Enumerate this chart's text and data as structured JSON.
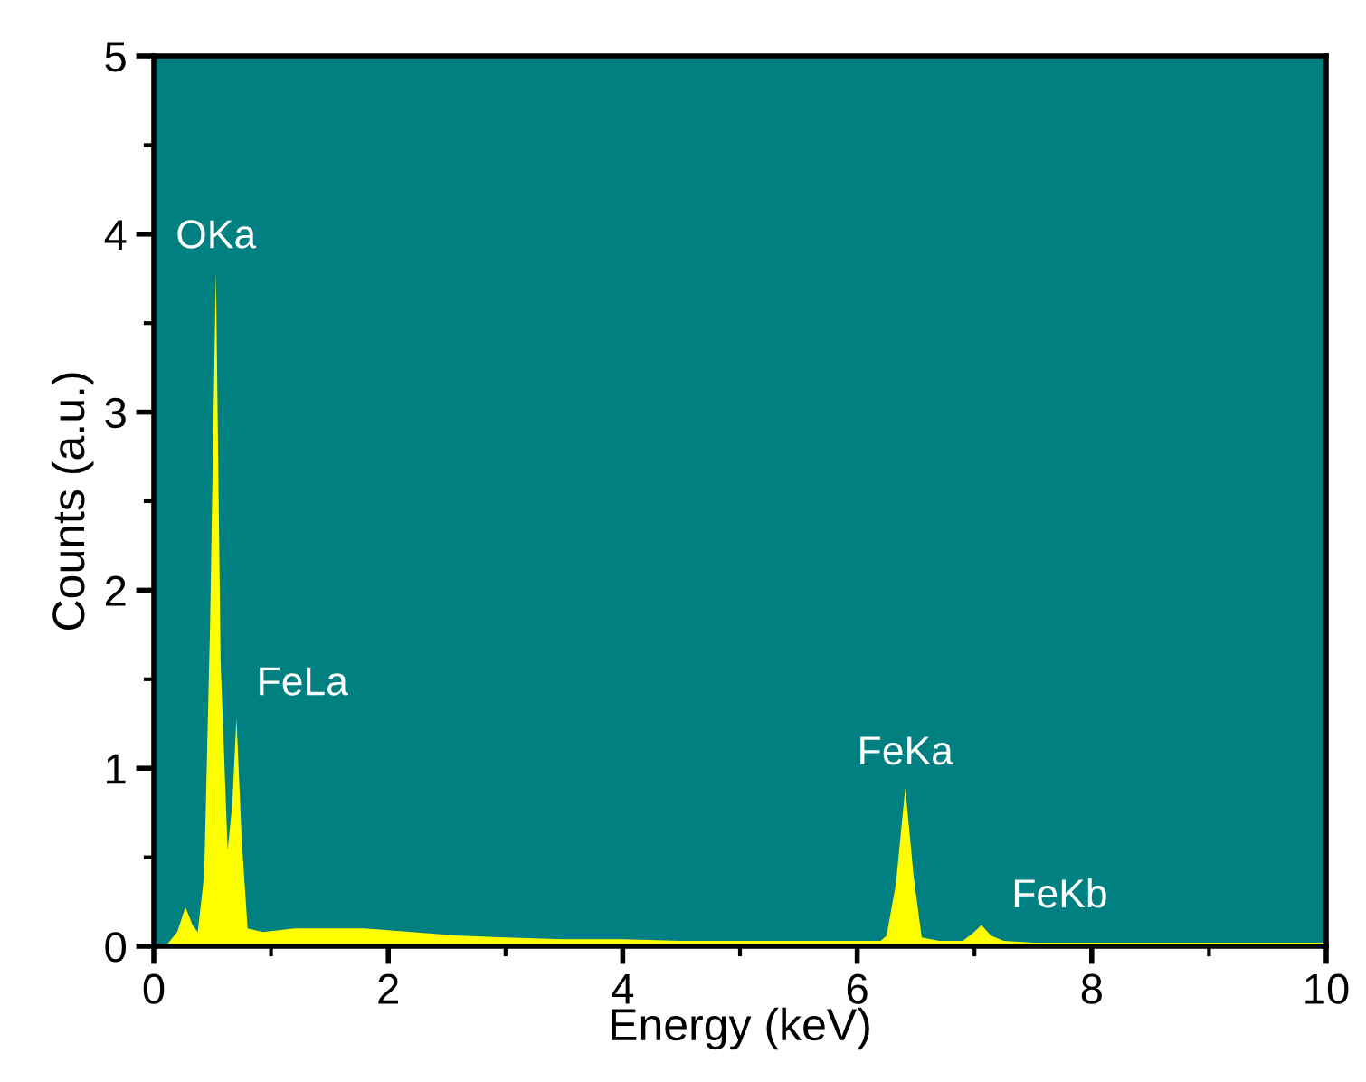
{
  "chart_data": {
    "type": "area",
    "xlabel": "Energy (keV)",
    "ylabel": "Counts (a.u.)",
    "xlim": [
      0,
      10
    ],
    "ylim": [
      0,
      5
    ],
    "xticks": [
      0,
      2,
      4,
      6,
      8,
      10
    ],
    "yticks": [
      0,
      1,
      2,
      3,
      4,
      5
    ],
    "grid": false,
    "legend": false,
    "series": [
      {
        "color": "#ffff00",
        "x": [
          0.1,
          0.2,
          0.27,
          0.33,
          0.375,
          0.43,
          0.48,
          0.53,
          0.57,
          0.63,
          0.67,
          0.705,
          0.75,
          0.8,
          0.93,
          1.2,
          1.47,
          1.8,
          2.2,
          2.6,
          3.0,
          3.5,
          4.0,
          4.5,
          5.0,
          5.5,
          6.0,
          6.2,
          6.25,
          6.33,
          6.41,
          6.48,
          6.55,
          6.7,
          6.9,
          6.98,
          7.06,
          7.14,
          7.25,
          7.5,
          8.0,
          8.5,
          9.0,
          9.5,
          10.0
        ],
        "values": [
          0,
          0.08,
          0.22,
          0.12,
          0.08,
          0.4,
          1.8,
          3.79,
          1.6,
          0.54,
          0.8,
          1.28,
          0.6,
          0.1,
          0.08,
          0.1,
          0.1,
          0.1,
          0.08,
          0.06,
          0.05,
          0.04,
          0.04,
          0.03,
          0.03,
          0.03,
          0.03,
          0.03,
          0.06,
          0.35,
          0.89,
          0.4,
          0.05,
          0.03,
          0.03,
          0.07,
          0.12,
          0.06,
          0.03,
          0.02,
          0.02,
          0.02,
          0.02,
          0.02,
          0.02
        ]
      }
    ],
    "annotations": [
      {
        "text": "OKa",
        "x": 0.53,
        "y": 3.79
      },
      {
        "text": "FeLa",
        "x": 0.705,
        "y": 1.28
      },
      {
        "text": "FeKa",
        "x": 6.41,
        "y": 0.89
      },
      {
        "text": "FeKb",
        "x": 7.06,
        "y": 0.115
      }
    ]
  }
}
